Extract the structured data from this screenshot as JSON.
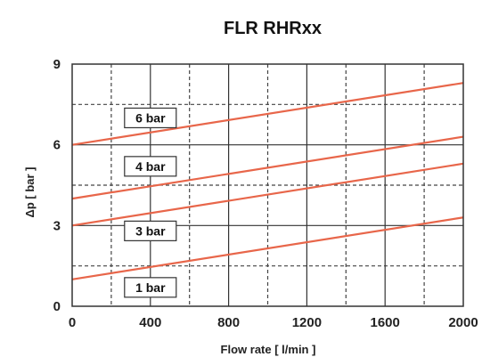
{
  "chart_data": {
    "type": "line",
    "title": "FLR RHRxx",
    "xlabel": "Flow rate [ l/min ]",
    "ylabel": "Δp [ bar ]",
    "xlim": [
      0,
      2000
    ],
    "ylim": [
      0,
      9
    ],
    "x_ticks": [
      0,
      400,
      800,
      1200,
      1600,
      2000
    ],
    "y_ticks": [
      0,
      3,
      6,
      9
    ],
    "x_minor_gridlines": [
      200,
      600,
      1000,
      1400,
      1800
    ],
    "y_minor_gridlines": [
      1.5,
      4.5,
      7.5
    ],
    "grid": true,
    "line_color": "#e8664a",
    "series": [
      {
        "name": "1 bar",
        "x": [
          0,
          2000
        ],
        "y": [
          1.0,
          3.3
        ],
        "label_at": [
          400,
          0.7
        ]
      },
      {
        "name": "3 bar",
        "x": [
          0,
          2000
        ],
        "y": [
          3.0,
          5.3
        ],
        "label_at": [
          400,
          2.8
        ]
      },
      {
        "name": "4 bar",
        "x": [
          0,
          2000
        ],
        "y": [
          4.0,
          6.3
        ],
        "label_at": [
          400,
          5.2
        ]
      },
      {
        "name": "6 bar",
        "x": [
          0,
          2000
        ],
        "y": [
          6.0,
          8.3
        ],
        "label_at": [
          400,
          7.0
        ]
      }
    ]
  }
}
